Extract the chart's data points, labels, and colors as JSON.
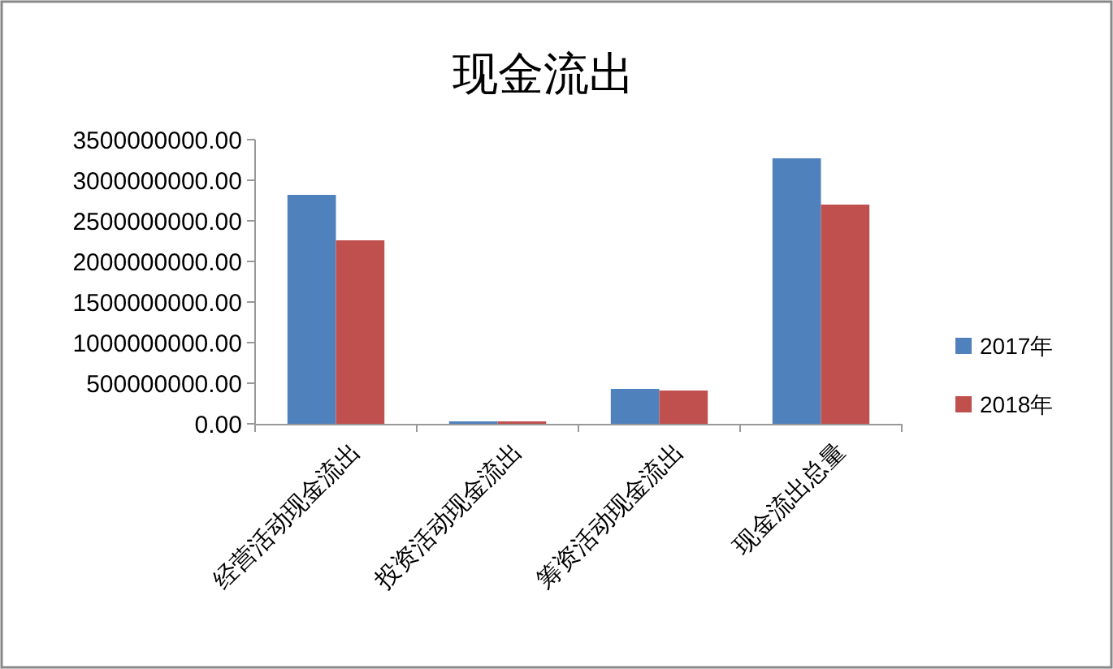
{
  "chart_data": {
    "type": "bar",
    "title": "现金流出",
    "categories": [
      "经营活动现金流出",
      "投资活动现金流出",
      "筹资活动现金流出",
      "现金流出总量"
    ],
    "series": [
      {
        "name": "2017年",
        "color": "#4f81bd",
        "values": [
          2820000000,
          30000000,
          430000000,
          3270000000
        ]
      },
      {
        "name": "2018年",
        "color": "#c0504d",
        "values": [
          2260000000,
          30000000,
          410000000,
          2700000000
        ]
      }
    ],
    "ylim": [
      0,
      3500000000
    ],
    "yticks": [
      {
        "value": 0,
        "label": "0.00"
      },
      {
        "value": 500000000,
        "label": "500000000.00"
      },
      {
        "value": 1000000000,
        "label": "1000000000.00"
      },
      {
        "value": 1500000000,
        "label": "1500000000.00"
      },
      {
        "value": 2000000000,
        "label": "2000000000.00"
      },
      {
        "value": 2500000000,
        "label": "2500000000.00"
      },
      {
        "value": 3000000000,
        "label": "3000000000.00"
      },
      {
        "value": 3500000000,
        "label": "3500000000.00"
      }
    ],
    "legend": "right"
  }
}
